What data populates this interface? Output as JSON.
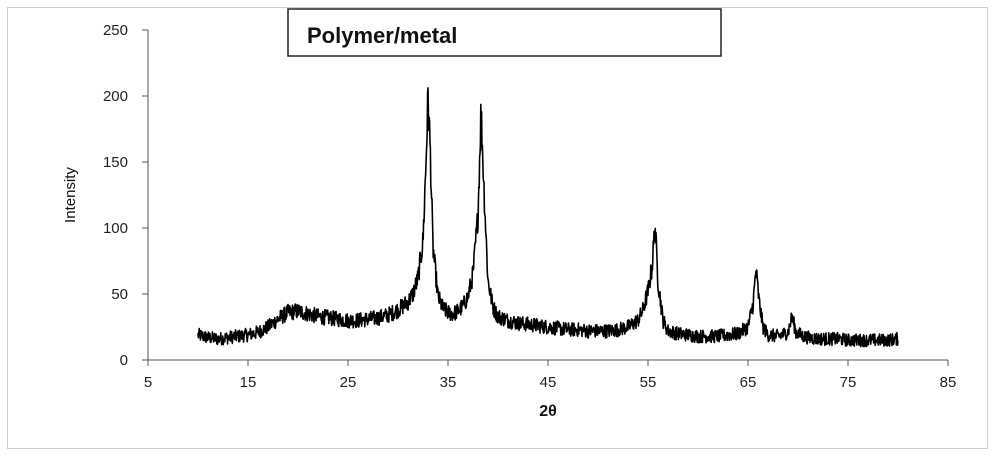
{
  "chart_data": {
    "type": "line",
    "title": "Polymer/metal",
    "xlabel": "2θ",
    "ylabel": "Intensity",
    "xlim": [
      5,
      85
    ],
    "ylim": [
      0,
      250
    ],
    "x_ticks": [
      5,
      15,
      25,
      35,
      45,
      55,
      65,
      75,
      85
    ],
    "y_ticks": [
      0,
      50,
      100,
      150,
      200,
      250
    ],
    "grid": false,
    "legend": "none",
    "series": [
      {
        "color": "#000000",
        "x": [
          10,
          11,
          12,
          13,
          14,
          15,
          16,
          17,
          18,
          19,
          20,
          21,
          22,
          23,
          24,
          25,
          26,
          27,
          28,
          29,
          30,
          31,
          31.5,
          32,
          32.5,
          32.8,
          33,
          33.2,
          33.5,
          34,
          34.5,
          35,
          35.5,
          36,
          36.5,
          37,
          37.5,
          38,
          38.3,
          38.6,
          39,
          39.5,
          40,
          41,
          42,
          43,
          44,
          45,
          46,
          47,
          48,
          49,
          50,
          51,
          52,
          53,
          54,
          54.5,
          55,
          55.4,
          55.7,
          56,
          56.5,
          57,
          58,
          59,
          60,
          61,
          62,
          63,
          64,
          65,
          65.5,
          65.8,
          66.1,
          66.5,
          67,
          68,
          69,
          69.4,
          69.8,
          70.5,
          71,
          72,
          73,
          74,
          75,
          76,
          77,
          78,
          79,
          80
        ],
        "y": [
          19,
          17,
          16,
          17,
          18,
          19,
          21,
          25,
          31,
          36,
          37,
          35,
          33,
          32,
          31,
          30,
          30,
          31,
          32,
          34,
          38,
          44,
          50,
          62,
          90,
          150,
          199,
          165,
          85,
          48,
          39,
          36,
          35,
          37,
          41,
          48,
          65,
          110,
          190,
          130,
          60,
          40,
          33,
          30,
          28,
          27,
          26,
          25,
          24,
          23,
          23,
          22,
          22,
          22,
          23,
          25,
          30,
          38,
          52,
          70,
          102,
          60,
          30,
          22,
          20,
          19,
          18,
          18,
          18,
          19,
          20,
          25,
          42,
          68,
          45,
          25,
          19,
          18,
          21,
          33,
          21,
          18,
          17,
          16,
          16,
          16,
          15,
          15,
          15,
          15,
          15,
          16
        ]
      }
    ]
  }
}
